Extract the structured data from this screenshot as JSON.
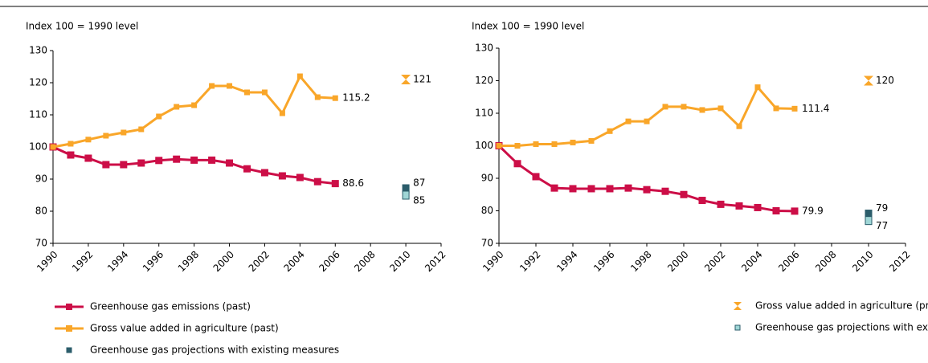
{
  "chart_data": [
    {
      "type": "line",
      "ylabel": "Index 100 = 1990 level",
      "xlim": [
        1990,
        2012
      ],
      "xticks": [
        1990,
        1992,
        1994,
        1996,
        1998,
        2000,
        2002,
        2004,
        2006,
        2008,
        2010,
        2012
      ],
      "ylim": [
        70,
        130
      ],
      "yticks": [
        70,
        80,
        90,
        100,
        110,
        120,
        130
      ],
      "series": [
        {
          "name": "Greenhouse gas emissions (past)",
          "color": "#cc0e47",
          "x": [
            1990,
            1991,
            1992,
            1993,
            1994,
            1995,
            1996,
            1997,
            1998,
            1999,
            2000,
            2001,
            2002,
            2003,
            2004,
            2005,
            2006
          ],
          "values": [
            100,
            97.5,
            96.5,
            94.5,
            94.5,
            95,
            95.8,
            96.2,
            95.9,
            95.9,
            95,
            93.2,
            92,
            91,
            90.5,
            89.2,
            88.6
          ]
        },
        {
          "name": "Gross value added in agriculture (past)",
          "color": "#f9a629",
          "x": [
            1990,
            1991,
            1992,
            1993,
            1994,
            1995,
            1996,
            1997,
            1998,
            1999,
            2000,
            2001,
            2002,
            2003,
            2004,
            2005,
            2006
          ],
          "values": [
            100,
            101,
            102.3,
            103.5,
            104.5,
            105.5,
            109.5,
            112.5,
            113,
            119,
            119,
            117,
            117,
            110.5,
            122,
            115.5,
            115.2
          ]
        },
        {
          "name": "Greenhouse gas projections with existing measures",
          "color": "#2b5d6b",
          "x": [
            2010
          ],
          "values": [
            87
          ]
        },
        {
          "name": "Gross value added in agriculture (projections)",
          "color": "#f9a629",
          "x": [
            2010
          ],
          "values": [
            121
          ]
        },
        {
          "name": "Greenhouse gas projections with existing and additional measures",
          "color": "#9fd6d6",
          "x": [
            2010
          ],
          "values": [
            85
          ]
        }
      ]
    },
    {
      "type": "line",
      "ylabel": "Index 100 = 1990 level",
      "xlim": [
        1990,
        2012
      ],
      "xticks": [
        1990,
        1992,
        1994,
        1996,
        1998,
        2000,
        2002,
        2004,
        2006,
        2008,
        2010,
        2012
      ],
      "ylim": [
        70,
        130
      ],
      "yticks": [
        70,
        80,
        90,
        100,
        110,
        120,
        130
      ],
      "series": [
        {
          "color": "#cc0e47",
          "x": [
            1990,
            1991,
            1992,
            1993,
            1994,
            1995,
            1996,
            1997,
            1998,
            1999,
            2000,
            2001,
            2002,
            2003,
            2004,
            2005,
            2006
          ],
          "values": [
            100,
            94.5,
            90.5,
            87,
            86.8,
            86.8,
            86.8,
            87,
            86.5,
            86,
            85,
            83.2,
            82,
            81.5,
            81,
            80,
            79.9
          ]
        },
        {
          "color": "#f9a629",
          "x": [
            1990,
            1991,
            1992,
            1993,
            1994,
            1995,
            1996,
            1997,
            1998,
            1999,
            2000,
            2001,
            2002,
            2003,
            2004,
            2005,
            2006
          ],
          "values": [
            100,
            100,
            100.5,
            100.5,
            101,
            101.5,
            104.5,
            107.5,
            107.5,
            112,
            112,
            111,
            111.5,
            106,
            118,
            111.5,
            111.4
          ]
        },
        {
          "color": "#2b5d6b",
          "x": [
            2010
          ],
          "values": [
            79
          ]
        },
        {
          "color": "#f9a629",
          "x": [
            2010
          ],
          "values": [
            120
          ]
        },
        {
          "color": "#9fd6d6",
          "x": [
            2010
          ],
          "values": [
            77
          ]
        }
      ]
    }
  ]
}
